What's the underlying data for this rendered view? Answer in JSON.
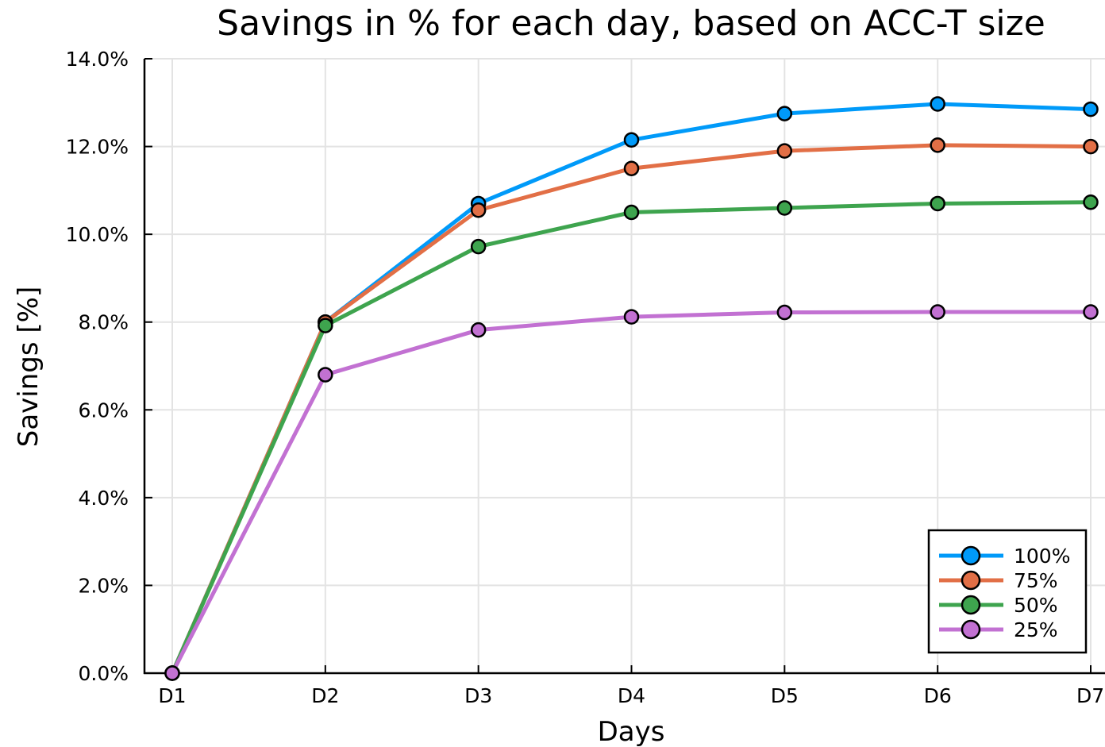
{
  "chart_data": {
    "type": "line",
    "title": "Savings in % for each day, based on ACC-T size",
    "xlabel": "Days",
    "ylabel": "Savings [%]",
    "categories": [
      "D1",
      "D2",
      "D3",
      "D4",
      "D5",
      "D6",
      "D7"
    ],
    "ylim": [
      0,
      14
    ],
    "yticks": [
      0,
      2,
      4,
      6,
      8,
      10,
      12,
      14
    ],
    "ytick_labels": [
      "0.0%",
      "2.0%",
      "4.0%",
      "6.0%",
      "8.0%",
      "10.0%",
      "12.0%",
      "14.0%"
    ],
    "grid": true,
    "legend_position": "bottom-right",
    "series": [
      {
        "name": "100%",
        "color": "#009AF9",
        "values": [
          0.0,
          8.0,
          10.7,
          12.15,
          12.75,
          12.97,
          12.85
        ]
      },
      {
        "name": "75%",
        "color": "#E26F46",
        "values": [
          0.0,
          8.0,
          10.55,
          11.5,
          11.9,
          12.03,
          12.0
        ]
      },
      {
        "name": "50%",
        "color": "#3EA44E",
        "values": [
          0.0,
          7.92,
          9.72,
          10.5,
          10.6,
          10.7,
          10.73
        ]
      },
      {
        "name": "25%",
        "color": "#C271D2",
        "values": [
          0.0,
          6.8,
          7.82,
          8.12,
          8.22,
          8.23,
          8.23
        ]
      }
    ]
  }
}
